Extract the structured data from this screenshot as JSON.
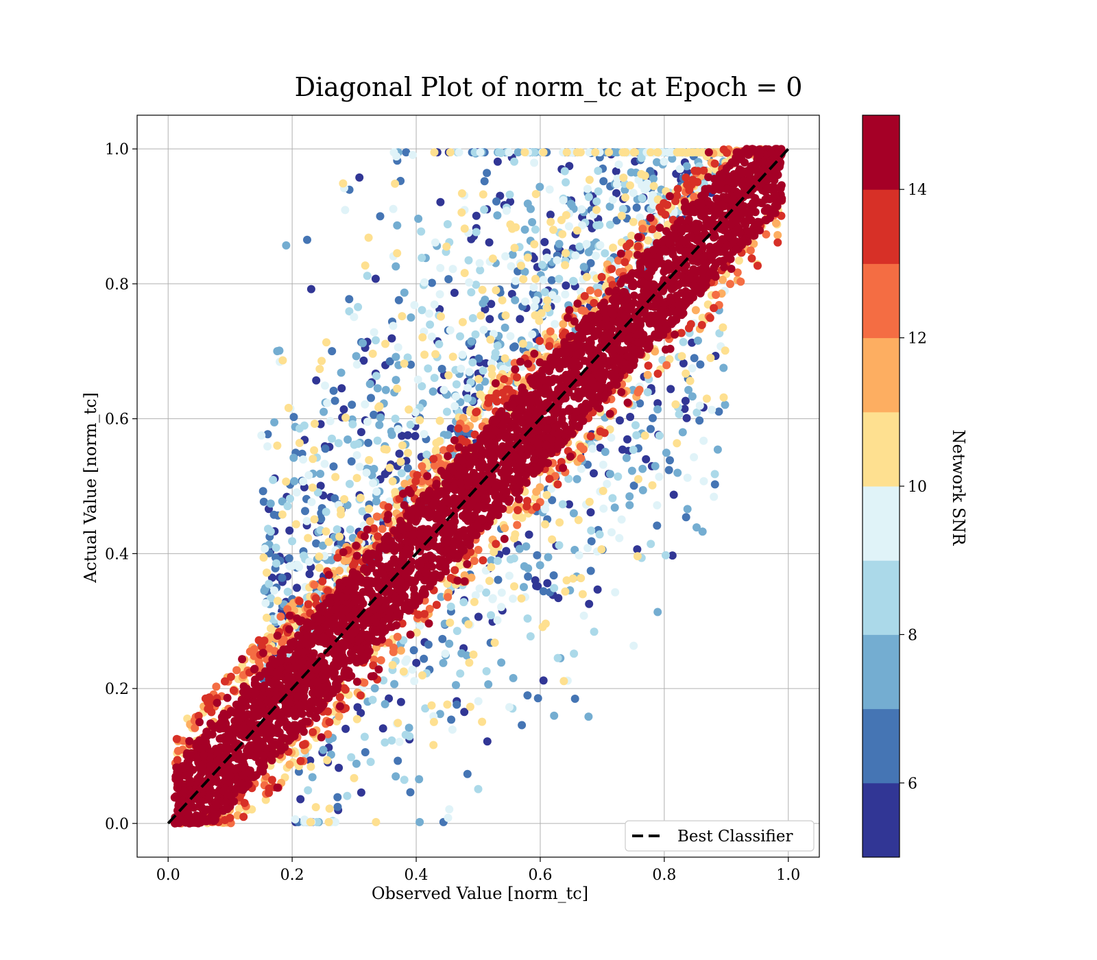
{
  "chart_data": {
    "type": "scatter",
    "title": "Diagonal Plot of norm_tc at Epoch = 0",
    "xlabel": "Observed Value [norm_tc]",
    "ylabel": "Actual Value [norm_tc]",
    "xlim": [
      -0.05,
      1.05
    ],
    "ylim": [
      -0.05,
      1.05
    ],
    "xticks": [
      "0.0",
      "0.2",
      "0.4",
      "0.6",
      "0.8",
      "1.0"
    ],
    "yticks": [
      "0.0",
      "0.2",
      "0.4",
      "0.6",
      "0.8",
      "1.0"
    ],
    "grid": true,
    "reference_line": {
      "name": "Best Classifier",
      "x": [
        0,
        1
      ],
      "y": [
        0,
        1
      ],
      "style": "dashed",
      "color": "#000000"
    },
    "legend": {
      "position": "lower-right",
      "entries": [
        "Best Classifier"
      ]
    },
    "colorbar": {
      "label": "Network SNR",
      "range": [
        5,
        15
      ],
      "ticks": [
        "6",
        "8",
        "10",
        "12",
        "14"
      ],
      "colors": [
        "#313695",
        "#4575b4",
        "#74add1",
        "#abd9e9",
        "#e0f3f8",
        "#fee090",
        "#fdae61",
        "#f46d43",
        "#d73027",
        "#a50026"
      ]
    },
    "point_distribution": {
      "note": "dense band around y = x; high SNR (red) near the diagonal, low SNR (blue) scattered away from it",
      "band_halfwidth_high_snr": 0.06,
      "x_range": [
        0.01,
        0.99
      ],
      "y_range": [
        0.0,
        1.0
      ]
    }
  }
}
